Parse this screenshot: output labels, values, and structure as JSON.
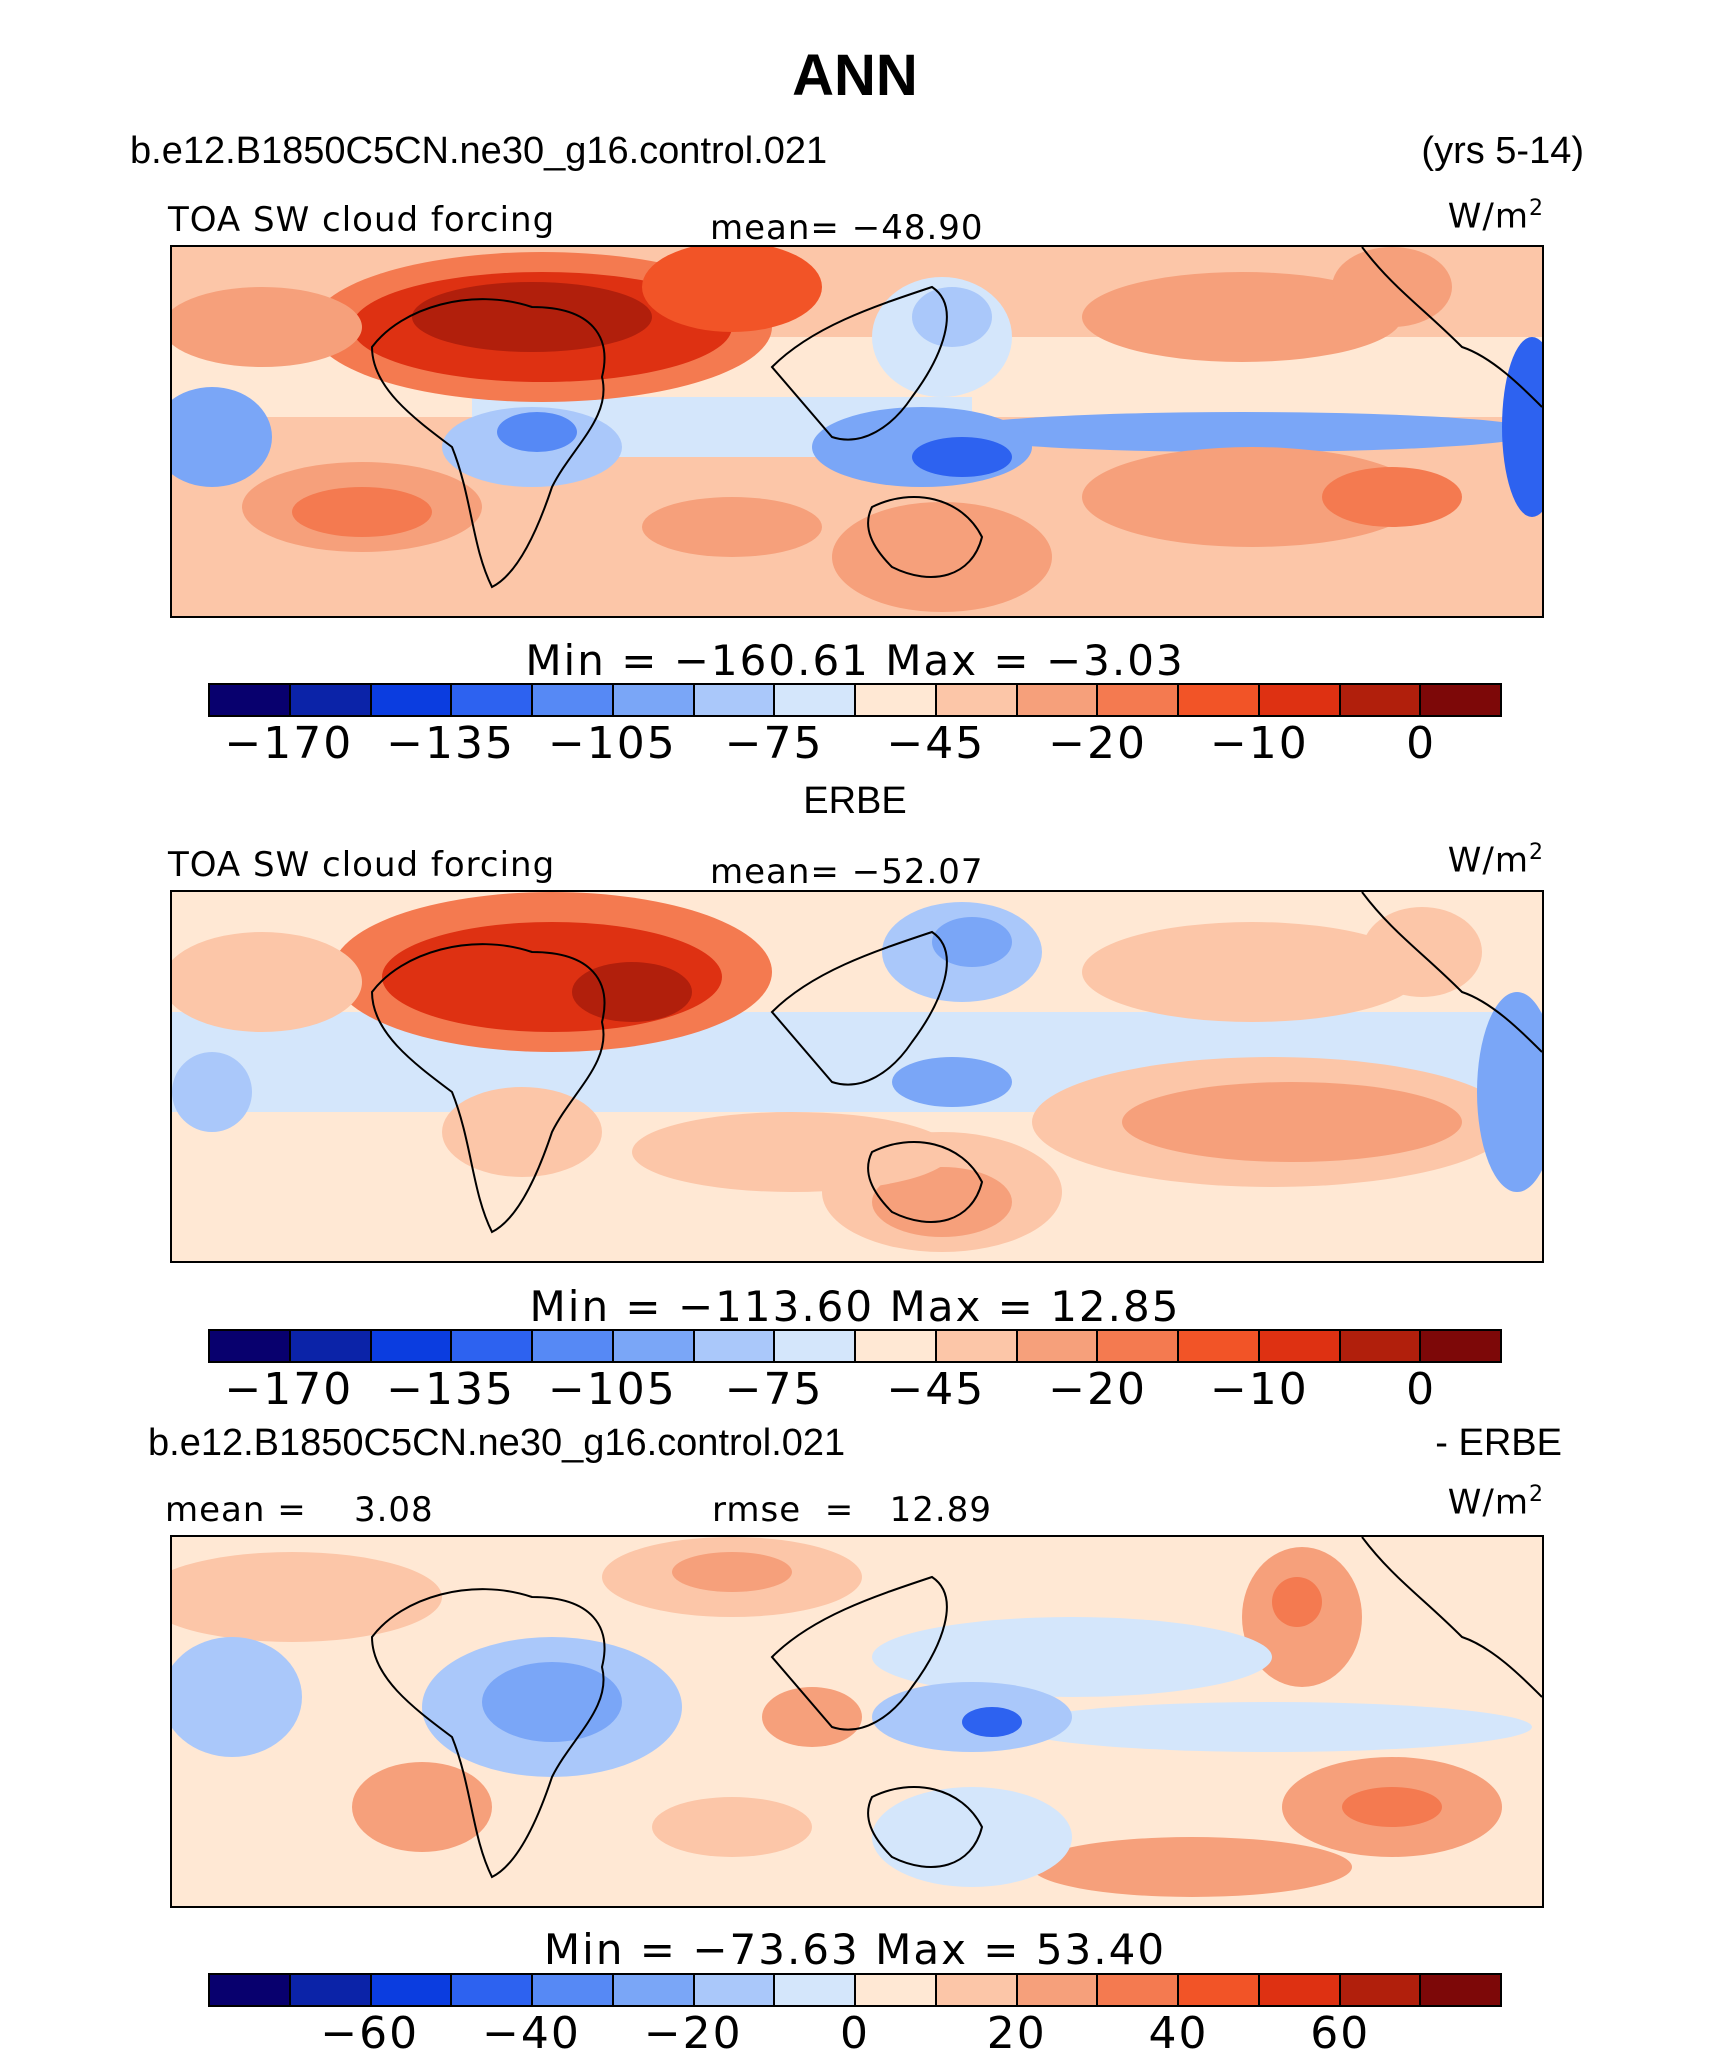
{
  "page": {
    "title": "ANN",
    "case_name": "b.e12.B1850C5CN.ne30_g16.control.021",
    "years": "(yrs 5-14)",
    "obs_title": "ERBE",
    "diff_case_name": "b.e12.B1850C5CN.ne30_g16.control.021",
    "diff_suffix": "- ERBE"
  },
  "colors": {
    "abs_scale": [
      "#08006e",
      "#0b23a8",
      "#0b3de0",
      "#2d62f0",
      "#5689f5",
      "#7aa6f7",
      "#aac8fa",
      "#d4e6fb",
      "#ffe8d4",
      "#fcc6a8",
      "#f6a07b",
      "#f47a50",
      "#f25427",
      "#de3112",
      "#b11f0c",
      "#7d0808"
    ],
    "diff_scale": [
      "#08006e",
      "#0b23a8",
      "#0b3de0",
      "#2d62f0",
      "#5689f5",
      "#7aa6f7",
      "#aac8fa",
      "#d4e6fb",
      "#ffe8d4",
      "#fcc6a8",
      "#f6a07b",
      "#f47a50",
      "#f25427",
      "#de3112",
      "#b11f0c",
      "#7d0808"
    ]
  },
  "panels": [
    {
      "field": "TOA SW cloud forcing",
      "mean": "mean=  −48.90",
      "units_base": "W/m",
      "units_exp": "2",
      "minmax": "Min  =  −160.61  Max  =   −3.03",
      "ticks": [
        "−170",
        "−135",
        "−105",
        "−75",
        "−45",
        "−20",
        "−10",
        "0"
      ]
    },
    {
      "field": "TOA SW cloud forcing",
      "mean": "mean=  −52.07",
      "units_base": "W/m",
      "units_exp": "2",
      "minmax": "Min  =  −113.60  Max  =   12.85",
      "ticks": [
        "−170",
        "−135",
        "−105",
        "−75",
        "−45",
        "−20",
        "−10",
        "0"
      ]
    },
    {
      "mean": "mean =    3.08",
      "rmse": "rmse  =   12.89",
      "units_base": "W/m",
      "units_exp": "2",
      "minmax": "Min  =  −73.63  Max  =   53.40",
      "ticks": [
        "−60",
        "−40",
        "−20",
        "0",
        "20",
        "40",
        "60"
      ]
    }
  ]
}
